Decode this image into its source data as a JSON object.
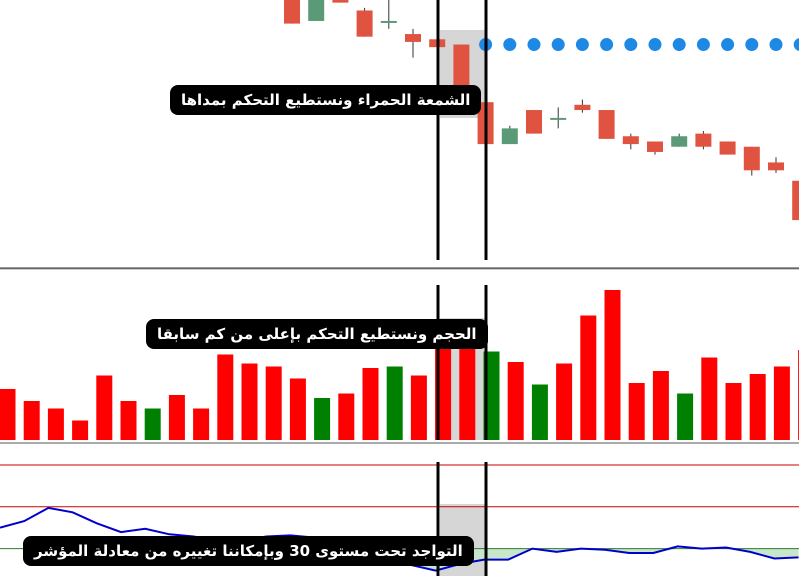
{
  "annotations": {
    "candle_note": "الشمعة الحمراء ونستطيع التحكم بمداها",
    "volume_note": "الحجم ونستطيع التحكم بإعلى من كم سابقا",
    "indicator_note": "التواجد تحت مستوى 30 وبإمكاننا تغييره من معادلة المؤشر"
  },
  "colors": {
    "bull": "#5b9a76",
    "bear": "#e05340",
    "dots": "#1e88e5",
    "vol_up": "#008000",
    "vol_down": "#ff0000",
    "rsi_line": "#0000cc",
    "level_line": "#cc0000",
    "oversold_fill": "#c8e6c9",
    "highlight": "#c8c8c8"
  },
  "chart_data": [
    {
      "type": "candlestick",
      "panel": "price",
      "note": "values read relative to the visible panel (0 = bottom, 100 = top); no price axis is shown",
      "ylim": [
        0,
        100
      ],
      "candles": [
        {
          "o": 100,
          "h": 100,
          "l": 91,
          "c": 91
        },
        {
          "o": 92,
          "h": 100,
          "l": 92,
          "c": 100
        },
        {
          "o": 100,
          "h": 100,
          "l": 99,
          "c": 99
        },
        {
          "o": 96,
          "h": 97,
          "l": 86,
          "c": 86
        },
        {
          "o": 92,
          "h": 100,
          "l": 89,
          "c": 92
        },
        {
          "o": 87,
          "h": 89,
          "l": 78,
          "c": 84
        },
        {
          "o": 85,
          "h": 85,
          "l": 82,
          "c": 82
        },
        {
          "o": 83,
          "h": 83,
          "l": 60,
          "c": 61
        },
        {
          "o": 61,
          "h": 61,
          "l": 45,
          "c": 45
        },
        {
          "o": 45,
          "h": 52,
          "l": 45,
          "c": 51
        },
        {
          "o": 58,
          "h": 58,
          "l": 49,
          "c": 49
        },
        {
          "o": 55,
          "h": 59,
          "l": 51,
          "c": 55
        },
        {
          "o": 60,
          "h": 62,
          "l": 57,
          "c": 58
        },
        {
          "o": 58,
          "h": 58,
          "l": 47,
          "c": 47
        },
        {
          "o": 48,
          "h": 49,
          "l": 43,
          "c": 45
        },
        {
          "o": 46,
          "h": 46,
          "l": 41,
          "c": 42
        },
        {
          "o": 44,
          "h": 49,
          "l": 44,
          "c": 48
        },
        {
          "o": 49,
          "h": 50,
          "l": 43,
          "c": 44
        },
        {
          "o": 46,
          "h": 46,
          "l": 41,
          "c": 41
        },
        {
          "o": 44,
          "h": 44,
          "l": 33,
          "c": 35
        },
        {
          "o": 38,
          "h": 40,
          "l": 34,
          "c": 35
        },
        {
          "o": 31,
          "h": 33,
          "l": 16,
          "c": 16
        }
      ],
      "dots": [
        {
          "candle": 8,
          "v": 83
        },
        {
          "candle": 9,
          "v": 83
        },
        {
          "candle": 10,
          "v": 83
        },
        {
          "candle": 11,
          "v": 83
        },
        {
          "candle": 12,
          "v": 83
        },
        {
          "candle": 13,
          "v": 83
        },
        {
          "candle": 14,
          "v": 83
        },
        {
          "candle": 15,
          "v": 83
        },
        {
          "candle": 16,
          "v": 83
        },
        {
          "candle": 17,
          "v": 83
        },
        {
          "candle": 18,
          "v": 83
        },
        {
          "candle": 19,
          "v": 83
        },
        {
          "candle": 20,
          "v": 83
        },
        {
          "candle": 21,
          "v": 83
        }
      ]
    },
    {
      "type": "bar",
      "panel": "volume",
      "note": "bar heights relative to the visible panel (0 = baseline, 100 = top)",
      "ylim": [
        0,
        100
      ],
      "values": [
        34,
        26,
        21,
        13,
        43,
        26,
        21,
        30,
        21,
        57,
        51,
        49,
        41,
        28,
        31,
        48,
        49,
        43,
        68,
        67,
        59,
        52,
        37,
        51,
        83,
        100,
        38,
        46,
        31,
        55,
        38,
        44,
        49,
        60
      ],
      "direction": [
        "down",
        "down",
        "down",
        "down",
        "down",
        "down",
        "up",
        "down",
        "down",
        "down",
        "down",
        "down",
        "down",
        "up",
        "down",
        "down",
        "up",
        "down",
        "down",
        "down",
        "up",
        "down",
        "up",
        "down",
        "down",
        "down",
        "down",
        "down",
        "up",
        "down",
        "down",
        "down",
        "down",
        "down"
      ]
    },
    {
      "type": "line",
      "panel": "indicator",
      "note": "oscillator panel with two horizontal level lines and a lower threshold; values relative to panel",
      "ylim": [
        0,
        100
      ],
      "values": [
        43,
        49,
        61,
        57,
        47,
        39,
        42,
        37,
        35,
        31,
        31,
        35,
        36,
        34,
        29,
        28,
        20,
        9,
        4,
        10,
        14,
        14,
        24,
        21,
        24,
        23,
        20,
        20,
        26,
        24,
        25,
        21,
        15,
        16
      ],
      "levels": [
        100,
        62,
        24
      ],
      "fill_below_level": 24
    }
  ]
}
